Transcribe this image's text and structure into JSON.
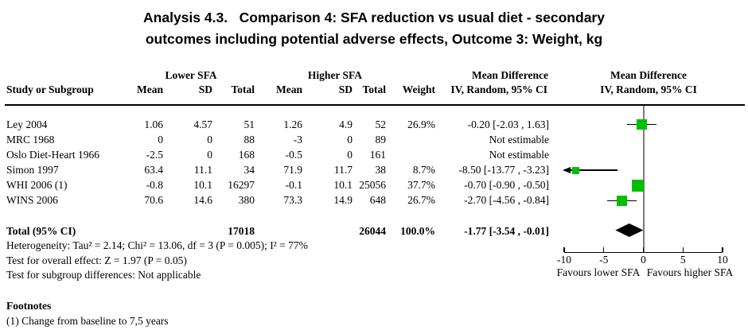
{
  "title": {
    "line1": "Analysis 4.3.   Comparison 4: SFA reduction vs usual diet - secondary",
    "line2": "outcomes including potential adverse effects, Outcome 3: Weight, kg"
  },
  "table": {
    "group_headers": {
      "lower": "Lower SFA",
      "higher": "Higher SFA",
      "md_left_line1": "Mean Difference",
      "md_left_line2": "IV, Random, 95% CI",
      "md_right_line1": "Mean Difference",
      "md_right_line2": "IV, Random, 95% CI"
    },
    "col_headers": {
      "study": "Study or Subgroup",
      "mean": "Mean",
      "sd": "SD",
      "total": "Total",
      "weight": "Weight"
    },
    "rows": [
      {
        "study": "Ley 2004",
        "mean1": "1.06",
        "sd1": "4.57",
        "total1": "51",
        "mean2": "1.26",
        "sd2": "4.9",
        "total2": "52",
        "weight": "26.9%",
        "md": "-0.20 [-2.03 , 1.63]"
      },
      {
        "study": "MRC 1968",
        "mean1": "0",
        "sd1": "0",
        "total1": "88",
        "mean2": "-3",
        "sd2": "0",
        "total2": "89",
        "weight": "",
        "md": "Not estimable"
      },
      {
        "study": "Oslo Diet-Heart 1966",
        "mean1": "-2.5",
        "sd1": "0",
        "total1": "168",
        "mean2": "-0.5",
        "sd2": "0",
        "total2": "161",
        "weight": "",
        "md": "Not estimable"
      },
      {
        "study": "Simon 1997",
        "mean1": "63.4",
        "sd1": "11.1",
        "total1": "34",
        "mean2": "71.9",
        "sd2": "11.7",
        "total2": "38",
        "weight": "8.7%",
        "md": "-8.50 [-13.77 , -3.23]"
      },
      {
        "study": "WHI 2006 (1)",
        "mean1": "-0.8",
        "sd1": "10.1",
        "total1": "16297",
        "mean2": "-0.1",
        "sd2": "10.1",
        "total2": "25056",
        "weight": "37.7%",
        "md": "-0.70 [-0.90 , -0.50]"
      },
      {
        "study": "WINS 2006",
        "mean1": "70.6",
        "sd1": "14.6",
        "total1": "380",
        "mean2": "73.3",
        "sd2": "14.9",
        "total2": "648",
        "weight": "26.7%",
        "md": "-2.70 [-4.56 , -0.84]"
      }
    ],
    "total_row": {
      "label": "Total (95% CI)",
      "total1": "17018",
      "total2": "26044",
      "weight": "100.0%",
      "md": "-1.77 [-3.54 , -0.01]"
    },
    "stats": {
      "heterogeneity": "Heterogeneity: Tau² = 2.14; Chi² = 13.06, df = 3 (P = 0.005); I² = 77%",
      "overall_effect": "Test for overall effect: Z = 1.97 (P = 0.05)",
      "subgroup": "Test for subgroup differences: Not applicable"
    }
  },
  "footnotes": {
    "heading": "Footnotes",
    "item1": "(1) Change from baseline to 7,5 years"
  },
  "chart_data": {
    "type": "scatter",
    "subtype": "forest-plot",
    "effect_measure": "Mean Difference, IV, Random, 95% CI",
    "studies": [
      {
        "name": "Ley 2004",
        "md": -0.2,
        "ci": [
          -2.03,
          1.63
        ],
        "weight_pct": 26.9
      },
      {
        "name": "MRC 1968",
        "md": null,
        "ci": null,
        "weight_pct": null
      },
      {
        "name": "Oslo Diet-Heart 1966",
        "md": null,
        "ci": null,
        "weight_pct": null
      },
      {
        "name": "Simon 1997",
        "md": -8.5,
        "ci": [
          -13.77,
          -3.23
        ],
        "weight_pct": 8.7
      },
      {
        "name": "WHI 2006 (1)",
        "md": -0.7,
        "ci": [
          -0.9,
          -0.5
        ],
        "weight_pct": 37.7
      },
      {
        "name": "WINS 2006",
        "md": -2.7,
        "ci": [
          -4.56,
          -0.84
        ],
        "weight_pct": 26.7
      }
    ],
    "total": {
      "md": -1.77,
      "ci": [
        -3.54,
        -0.01
      ]
    },
    "xlim": [
      -10,
      10
    ],
    "ticks": [
      -10,
      -5,
      0,
      5,
      10
    ],
    "xlabel_left": "Favours lower SFA",
    "xlabel_right": "Favours higher SFA",
    "marker_color": "#00bf00",
    "diamond_color": "#000000",
    "zero_line_color": "#7b7b7b"
  }
}
